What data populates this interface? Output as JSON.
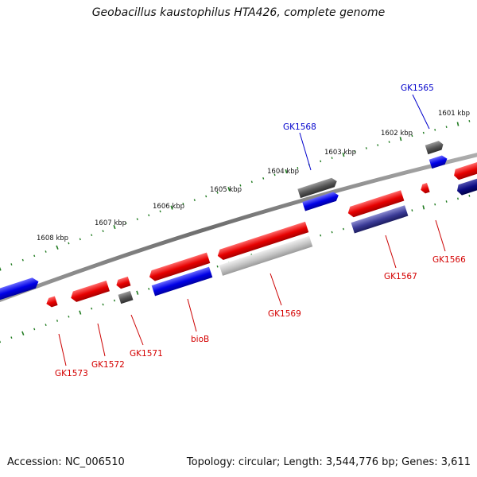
{
  "title": "Geobacillus kaustophilus HTA426, complete genome",
  "footer": {
    "accession": "Accession: NC_006510",
    "summary": "Topology: circular; Length: 3,544,776 bp; Genes: 3,611"
  },
  "scale_labels": [
    "1601 kbp",
    "1602 kbp",
    "1603 kbp",
    "1604 kbp",
    "1605 kbp",
    "1606 kbp",
    "1607 kbp",
    "1608 kbp"
  ],
  "genes": [
    {
      "label": "GK1565",
      "color": "#0000cc"
    },
    {
      "label": "GK1568",
      "color": "#0000cc"
    },
    {
      "label": "GK1566",
      "color": "#d40000"
    },
    {
      "label": "GK1567",
      "color": "#d40000"
    },
    {
      "label": "GK1569",
      "color": "#d40000"
    },
    {
      "label": "bioB",
      "color": "#d40000"
    },
    {
      "label": "GK1571",
      "color": "#d40000"
    },
    {
      "label": "GK1572",
      "color": "#d40000"
    },
    {
      "label": "GK1573",
      "color": "#d40000"
    }
  ],
  "colors": {
    "backbone": "#7a7a7a",
    "tick": "#1e7a1e",
    "cds_red": "#e60000",
    "cds_blue": "#0000e6",
    "cds_navy": "#2a2a8a",
    "cds_dark_gray": "#555555",
    "cds_light_gray": "#bcbcbc"
  }
}
